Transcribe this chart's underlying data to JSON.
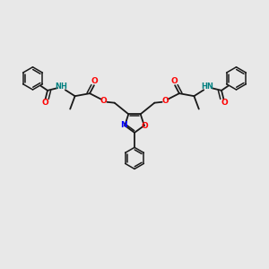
{
  "bg_color": "#e8e8e8",
  "bond_color": "#1a1a1a",
  "N_color": "#0000ff",
  "O_color": "#ff0000",
  "H_color": "#008080",
  "figsize": [
    3.0,
    3.0
  ],
  "dpi": 100,
  "xlim": [
    0,
    10
  ],
  "ylim": [
    0,
    10
  ]
}
